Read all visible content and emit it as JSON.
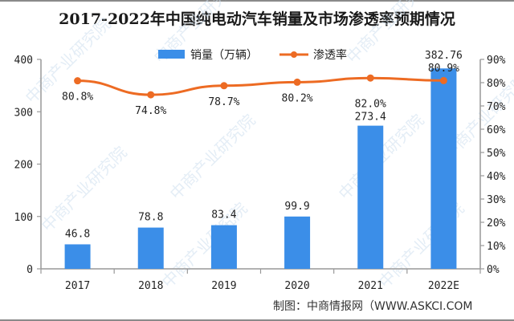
{
  "title": "2017-2022年中国纯电动汽车销量及市场渗透率预期情况",
  "source": "制图：中商情报网（WWW.ASKCI.COM",
  "watermark": "中商产业研究院",
  "colors": {
    "bar": "#3b8ee8",
    "line": "#ed6b23",
    "axis": "#999999",
    "text": "#222222"
  },
  "legend": [
    {
      "name": "销量（万辆）",
      "type": "bar"
    },
    {
      "name": "渗透率",
      "type": "line"
    }
  ],
  "chart_data": {
    "type": "bar",
    "title": "2017-2022年中国纯电动汽车销量及市场渗透率预期情况",
    "categories": [
      "2017",
      "2018",
      "2019",
      "2020",
      "2021",
      "2022E"
    ],
    "series": [
      {
        "name": "销量（万辆）",
        "type": "bar",
        "axis": "left",
        "values": [
          46.8,
          78.8,
          83.4,
          99.9,
          273.4,
          382.76
        ],
        "labels": [
          "46.8",
          "78.8",
          "83.4",
          "99.9",
          "273.4",
          "382.76"
        ]
      },
      {
        "name": "渗透率",
        "type": "line",
        "axis": "right",
        "values": [
          80.8,
          74.8,
          78.7,
          80.2,
          82.0,
          80.9
        ],
        "labels": [
          "80.8%",
          "74.8%",
          "78.7%",
          "80.2%",
          "82.0%",
          "80.9%"
        ]
      }
    ],
    "left_axis": {
      "min": 0,
      "max": 400,
      "ticks": [
        "0",
        "100",
        "200",
        "300",
        "400"
      ]
    },
    "right_axis": {
      "min": 0,
      "max": 90,
      "ticks": [
        "0%",
        "10%",
        "20%",
        "30%",
        "40%",
        "50%",
        "60%",
        "70%",
        "80%",
        "90%"
      ]
    },
    "xlabel": "",
    "ylabel": "",
    "legend_position": "top",
    "grid": false
  }
}
